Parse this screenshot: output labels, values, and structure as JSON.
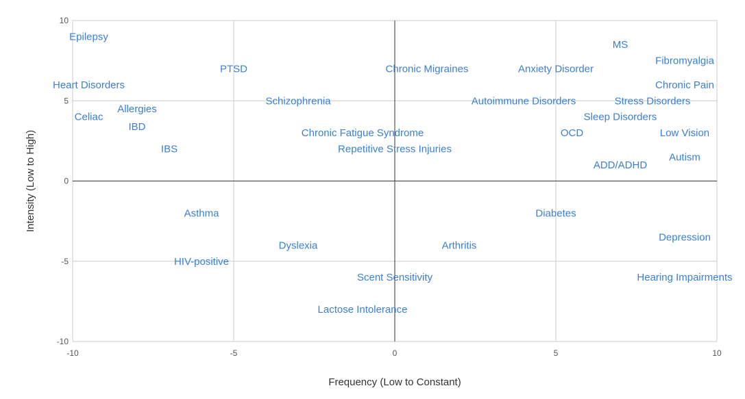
{
  "chart_data": {
    "type": "scatter",
    "title": "",
    "xlabel": "Frequency (Low to Constant)",
    "ylabel": "Intensity (Low to High)",
    "xlim": [
      -10,
      10
    ],
    "ylim": [
      -10,
      10
    ],
    "x_ticks": [
      -10,
      -5,
      0,
      5,
      10
    ],
    "y_ticks": [
      -10,
      -5,
      0,
      5,
      10
    ],
    "grid": true,
    "label_color": "#3a7fd5",
    "points": [
      {
        "label": "Epilepsy",
        "x": -9.5,
        "y": 9.0
      },
      {
        "label": "Heart Disorders",
        "x": -9.5,
        "y": 6.0
      },
      {
        "label": "Celiac",
        "x": -9.5,
        "y": 4.0
      },
      {
        "label": "Allergies",
        "x": -8.0,
        "y": 4.5
      },
      {
        "label": "IBD",
        "x": -8.0,
        "y": 3.4
      },
      {
        "label": "IBS",
        "x": -7.0,
        "y": 2.0
      },
      {
        "label": "PTSD",
        "x": -5.0,
        "y": 7.0
      },
      {
        "label": "Schizophrenia",
        "x": -3.0,
        "y": 5.0
      },
      {
        "label": "Chronic Fatigue Syndrome",
        "x": -1.0,
        "y": 3.0
      },
      {
        "label": "Repetitive Stress Injuries",
        "x": 0.0,
        "y": 2.0
      },
      {
        "label": "Chronic Migraines",
        "x": 1.0,
        "y": 7.0
      },
      {
        "label": "Anxiety Disorder",
        "x": 5.0,
        "y": 7.0
      },
      {
        "label": "Autoimmune Disorders",
        "x": 4.0,
        "y": 5.0
      },
      {
        "label": "MS",
        "x": 7.0,
        "y": 8.5
      },
      {
        "label": "Fibromyalgia",
        "x": 9.0,
        "y": 7.5
      },
      {
        "label": "Chronic Pain",
        "x": 9.0,
        "y": 6.0
      },
      {
        "label": "Stress Disorders",
        "x": 8.0,
        "y": 5.0
      },
      {
        "label": "Sleep Disorders",
        "x": 7.0,
        "y": 4.0
      },
      {
        "label": "OCD",
        "x": 5.5,
        "y": 3.0
      },
      {
        "label": "Low Vision",
        "x": 9.0,
        "y": 3.0
      },
      {
        "label": "Autism",
        "x": 9.0,
        "y": 1.5
      },
      {
        "label": "ADD/ADHD",
        "x": 7.0,
        "y": 1.0
      },
      {
        "label": "Asthma",
        "x": -6.0,
        "y": -2.0
      },
      {
        "label": "Dyslexia",
        "x": -3.0,
        "y": -4.0
      },
      {
        "label": "HIV-positive",
        "x": -6.0,
        "y": -5.0
      },
      {
        "label": "Scent Sensitivity",
        "x": 0.0,
        "y": -6.0
      },
      {
        "label": "Lactose Intolerance",
        "x": -1.0,
        "y": -8.0
      },
      {
        "label": "Arthritis",
        "x": 2.0,
        "y": -4.0
      },
      {
        "label": "Diabetes",
        "x": 5.0,
        "y": -2.0
      },
      {
        "label": "Depression",
        "x": 9.0,
        "y": -3.5
      },
      {
        "label": "Hearing Impairments",
        "x": 9.0,
        "y": -6.0
      }
    ]
  }
}
